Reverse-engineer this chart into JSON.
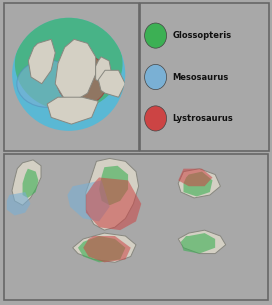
{
  "figsize": [
    2.72,
    3.05
  ],
  "dpi": 100,
  "background_outer": "#a8a8a8",
  "background_top_panel": "#8ecae6",
  "background_bottom_panel": "#8ecae6",
  "legend_bg": "#b8c4cc",
  "glossopteris_color": "#3cb054",
  "glossopteris_alpha": 0.6,
  "mesosaurus_color": "#7ab0d4",
  "mesosaurus_alpha": 0.6,
  "lystrosaurus_color": "#cc4444",
  "lystrosaurus_alpha": 0.55,
  "continent_color": "#d4d0c4",
  "continent_edge": "#888880",
  "continent_lw": 0.7,
  "globe_color": "#5ab8d4",
  "legend_items": [
    "Glossopteris",
    "Mesosaurus",
    "Lystrosaurus"
  ],
  "legend_colors": [
    "#3cb054",
    "#7ab0d4",
    "#cc4444"
  ]
}
